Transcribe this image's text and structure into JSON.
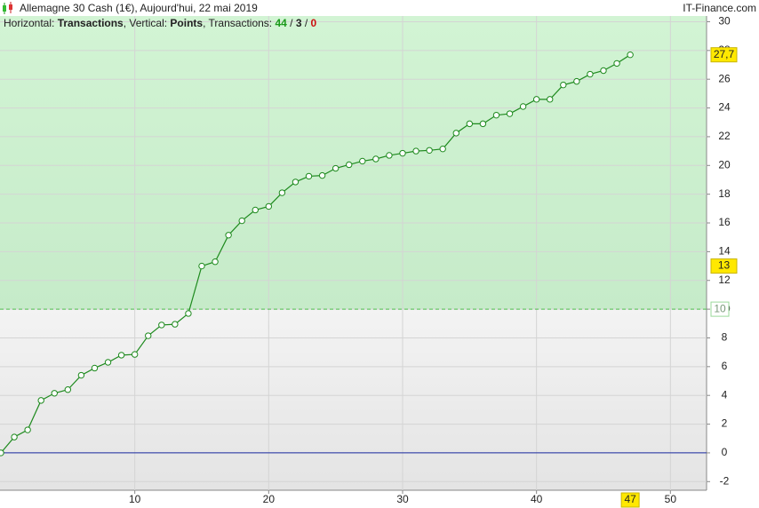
{
  "header": {
    "title": "Allemagne 30 Cash (1€), Aujourd'hui, 22 mai 2019",
    "brand": "IT-Finance.com"
  },
  "chart_data": {
    "type": "line",
    "subtitle": [
      {
        "text": "Horizontal: "
      },
      {
        "text": "Transactions",
        "bold": true
      },
      {
        "text": ", Vertical: "
      },
      {
        "text": "Points",
        "bold": true
      },
      {
        "text": ", Transactions: "
      },
      {
        "text": "44",
        "bold": true,
        "color": "#1a9a1a"
      },
      {
        "text": " / "
      },
      {
        "text": "3",
        "bold": true
      },
      {
        "text": " / "
      },
      {
        "text": "0",
        "bold": true,
        "color": "#cc1111"
      }
    ],
    "x": [
      0,
      1,
      2,
      3,
      4,
      5,
      6,
      7,
      8,
      9,
      10,
      11,
      12,
      13,
      14,
      15,
      16,
      17,
      18,
      19,
      20,
      21,
      22,
      23,
      24,
      25,
      26,
      27,
      28,
      29,
      30,
      31,
      32,
      33,
      34,
      35,
      36,
      37,
      38,
      39,
      40,
      41,
      42,
      43,
      44,
      45,
      46,
      47
    ],
    "series": [
      {
        "name": "Points",
        "color": "#1e8a1e",
        "values": [
          0,
          1.1,
          1.6,
          3.65,
          4.15,
          4.4,
          5.4,
          5.9,
          6.3,
          6.8,
          6.85,
          8.15,
          8.9,
          8.95,
          9.7,
          13.0,
          13.3,
          15.15,
          16.15,
          16.9,
          17.15,
          18.1,
          18.85,
          19.25,
          19.3,
          19.8,
          20.05,
          20.3,
          20.45,
          20.7,
          20.85,
          21.0,
          21.05,
          21.15,
          22.25,
          22.9,
          22.9,
          23.5,
          23.6,
          24.1,
          24.6,
          24.6,
          25.6,
          25.85,
          26.35,
          26.6,
          27.1,
          27.7
        ]
      }
    ],
    "xlim": [
      0,
      52.7
    ],
    "ylim": [
      -2.6,
      30.4
    ],
    "xticks": [
      10,
      20,
      30,
      40,
      50
    ],
    "yticks": [
      -2,
      0,
      2,
      4,
      6,
      8,
      10,
      12,
      14,
      16,
      18,
      20,
      22,
      24,
      26,
      28,
      30
    ],
    "grid": true,
    "threshold": 10,
    "zero_line_color": "#1a2aa0",
    "y_markers": [
      {
        "value": 27.7,
        "label": "27,7"
      },
      {
        "value": 13,
        "label": "13"
      }
    ],
    "x_marker": 47
  }
}
